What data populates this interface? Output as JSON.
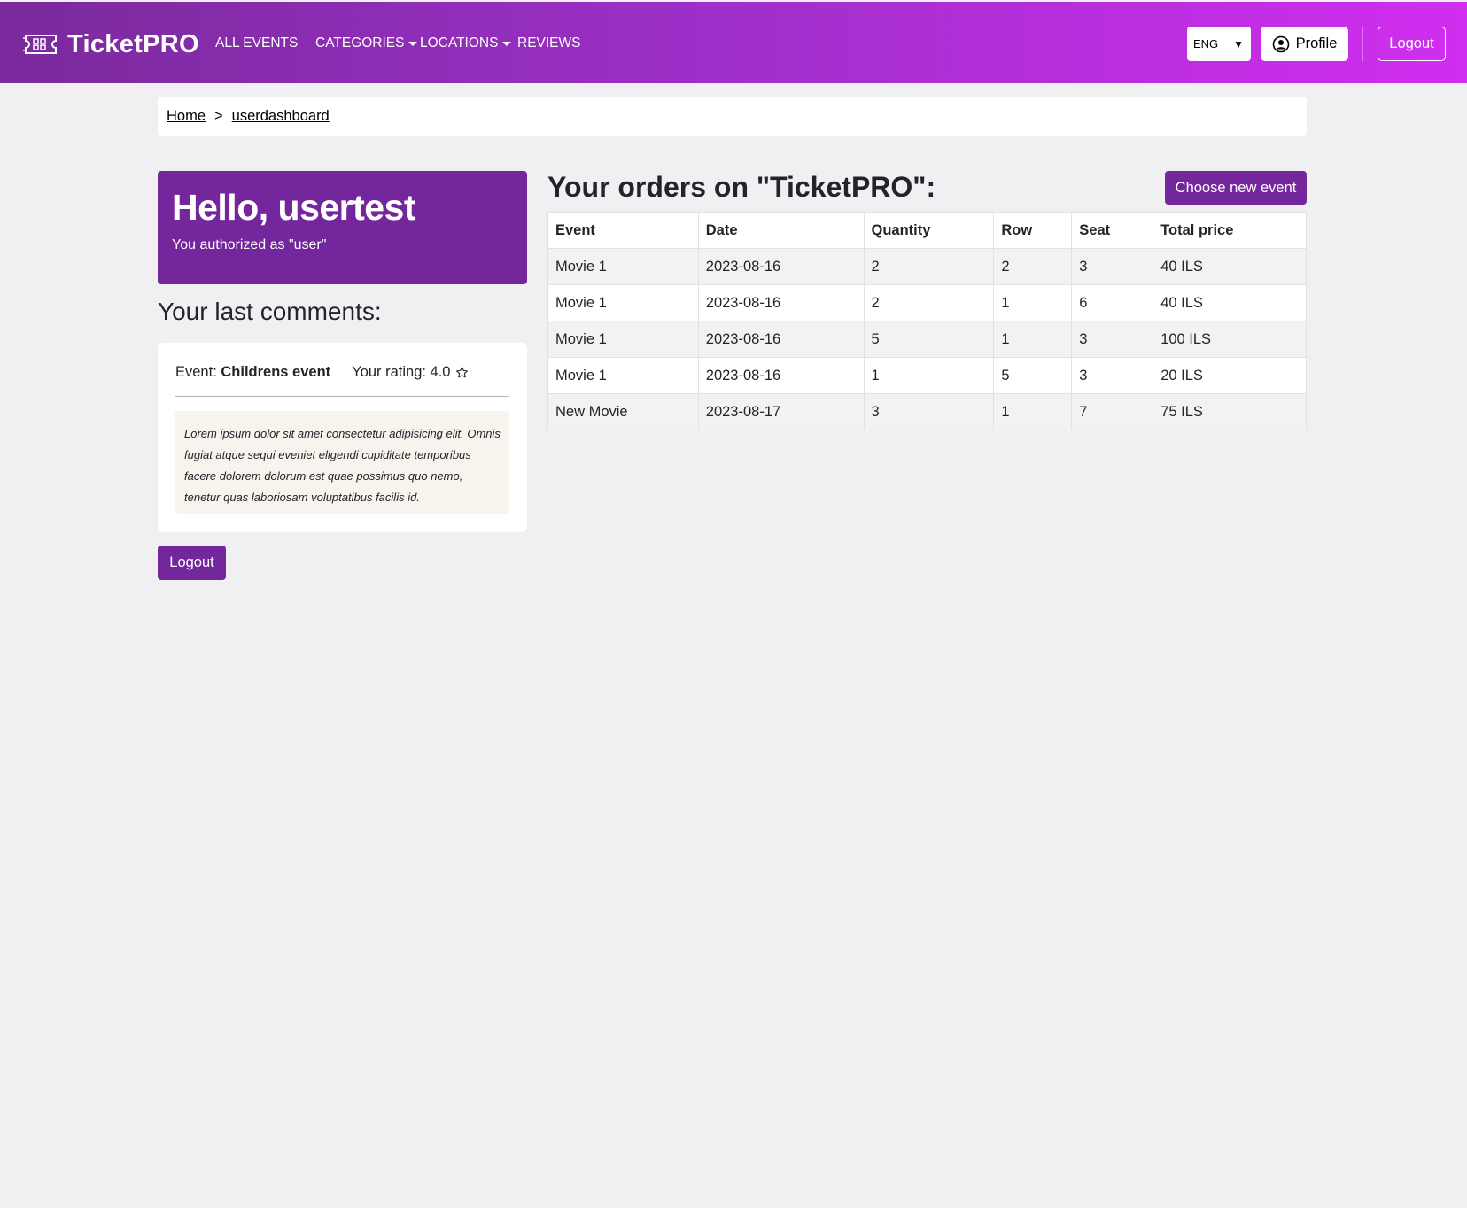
{
  "navbar": {
    "brand": "TicketPRO",
    "links": [
      {
        "label": "ALL EVENTS",
        "dropdown": false
      },
      {
        "label": "CATEGORIES",
        "dropdown": true
      },
      {
        "label": "LOCATIONS",
        "dropdown": true
      },
      {
        "label": "REVIEWS",
        "dropdown": false
      }
    ],
    "language": "ENG",
    "profile_label": "Profile",
    "logout_label": "Logout",
    "gradient_start": "#7a2a9c",
    "gradient_end": "#d12ef0"
  },
  "breadcrumb": {
    "home": "Home",
    "separator": ">",
    "current": "userdashboard"
  },
  "hello": {
    "title": "Hello, usertest",
    "subtitle": "You authorized as \"user\"",
    "color": "#74269d"
  },
  "comments": {
    "heading": "Your last comments:",
    "items": [
      {
        "event_prefix": "Event:",
        "event_name": "Childrens event",
        "rating_label": "Your rating: 4.0",
        "rating_icon": "star-outline-icon",
        "text": "Lorem ipsum dolor sit amet consectetur adipisicing elit. Omnis fugiat atque sequi eveniet eligendi cupiditate temporibus facere dolorem dolorum est quae possimus quo nemo, tenetur quas laboriosam voluptatibus facilis id."
      }
    ]
  },
  "logout_button": "Logout",
  "orders": {
    "title": "Your orders on \"TicketPRO\":",
    "choose_button": "Choose new event",
    "columns": [
      "Event",
      "Date",
      "Quantity",
      "Row",
      "Seat",
      "Total price"
    ],
    "rows": [
      [
        "Movie 1",
        "2023-08-16",
        "2",
        "2",
        "3",
        "40 ILS"
      ],
      [
        "Movie 1",
        "2023-08-16",
        "2",
        "1",
        "6",
        "40 ILS"
      ],
      [
        "Movie 1",
        "2023-08-16",
        "5",
        "1",
        "3",
        "100 ILS"
      ],
      [
        "Movie 1",
        "2023-08-16",
        "1",
        "5",
        "3",
        "20 ILS"
      ],
      [
        "New Movie",
        "2023-08-17",
        "3",
        "1",
        "7",
        "75 ILS"
      ]
    ]
  }
}
